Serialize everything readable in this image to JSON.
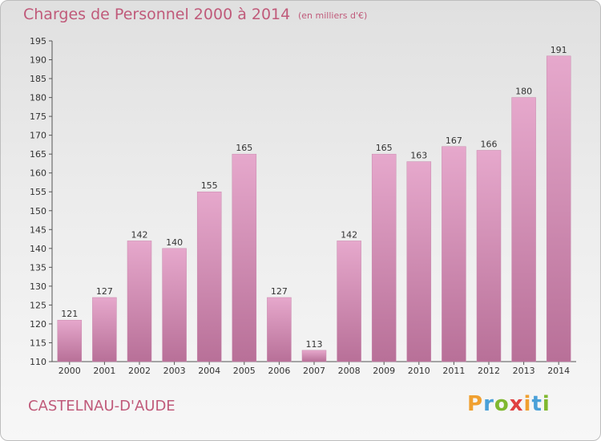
{
  "header": {
    "title": "Charges de Personnel 2000 à 2014",
    "subtitle": "(en milliers d'€)"
  },
  "footer": {
    "place": "CASTELNAU-D'AUDE",
    "logo": "Proxiti"
  },
  "colors": {
    "bar_top": "#e6a8cc",
    "bar_bottom": "#b87098",
    "text_accent": "#c05a7a",
    "logo_letters": [
      "#f0a030",
      "#4aa0d8",
      "#80b830",
      "#e04040",
      "#f0a030",
      "#4aa0d8",
      "#80b830"
    ]
  },
  "chart_data": {
    "type": "bar",
    "title": "Charges de Personnel 2000 à 2014",
    "subtitle": "(en milliers d'€)",
    "xlabel": "",
    "ylabel": "",
    "categories": [
      "2000",
      "2001",
      "2002",
      "2003",
      "2004",
      "2005",
      "2006",
      "2007",
      "2008",
      "2009",
      "2010",
      "2011",
      "2012",
      "2013",
      "2014"
    ],
    "values": [
      121,
      127,
      142,
      140,
      155,
      165,
      127,
      113,
      142,
      165,
      163,
      167,
      166,
      180,
      191
    ],
    "ylim": [
      110,
      195
    ],
    "yticks": [
      110,
      115,
      120,
      125,
      130,
      135,
      140,
      145,
      150,
      155,
      160,
      165,
      170,
      175,
      180,
      185,
      190,
      195
    ],
    "grid": false,
    "legend": "none"
  }
}
